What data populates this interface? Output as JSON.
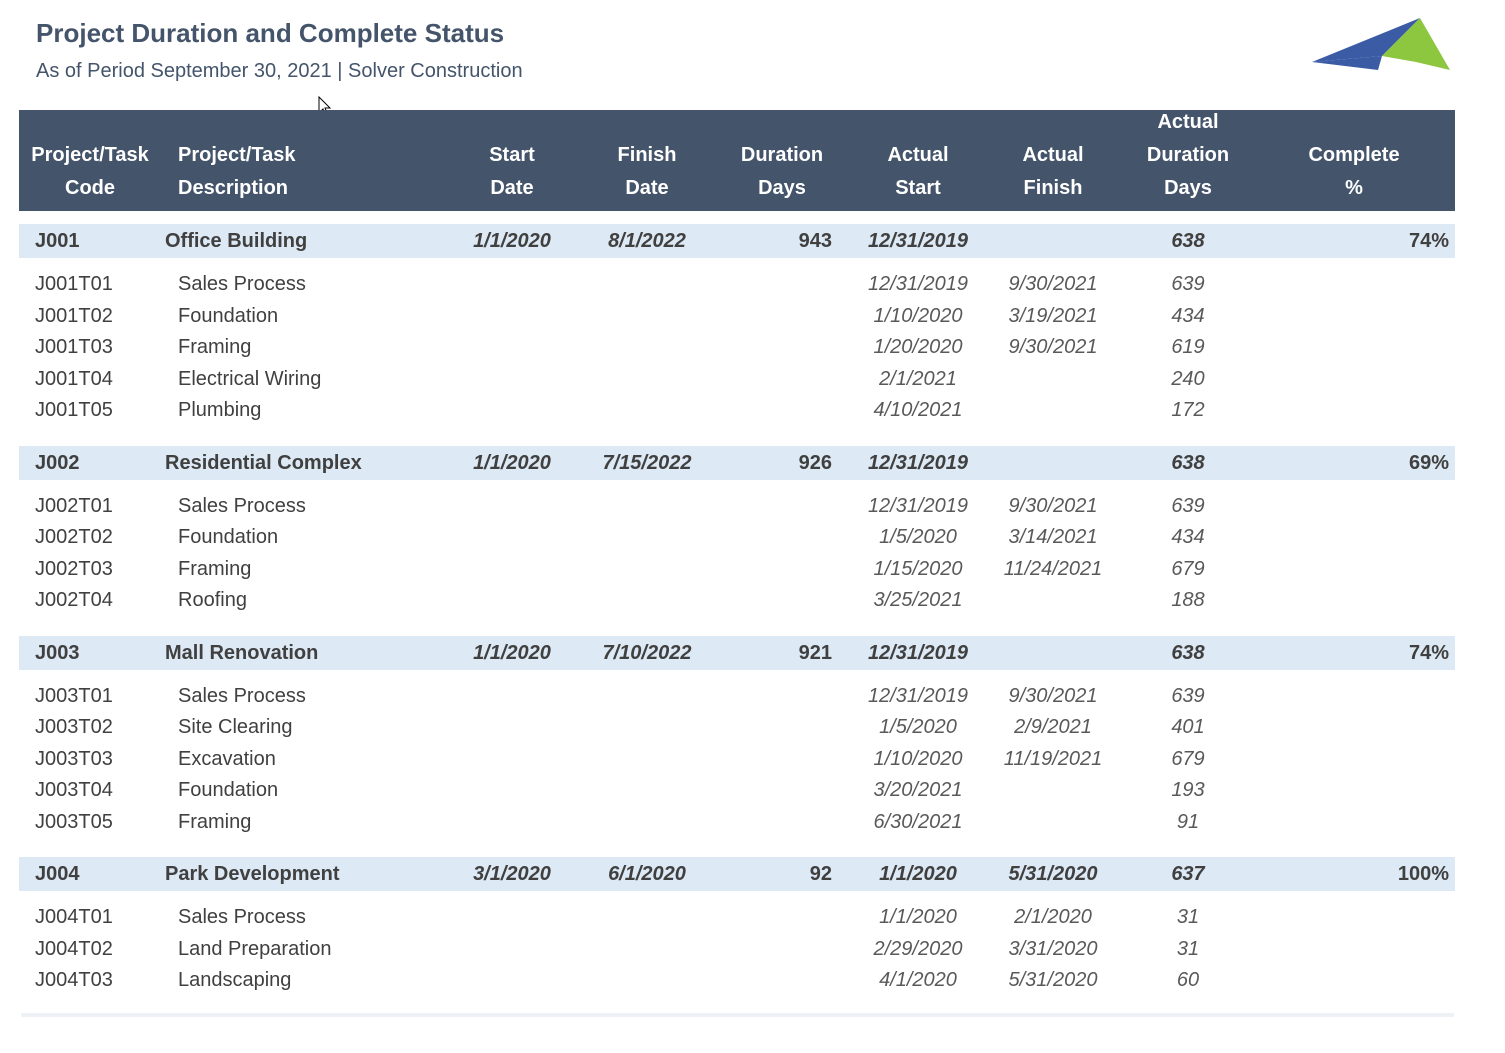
{
  "header": {
    "title": "Project Duration and Complete Status",
    "subtitle": "As of Period September 30, 2021 | Solver Construction"
  },
  "columns": {
    "code": [
      "Project/Task",
      "Code"
    ],
    "desc": [
      "Project/Task",
      "Description"
    ],
    "start": [
      "Start",
      "Date"
    ],
    "finish": [
      "Finish",
      "Date"
    ],
    "duration": [
      "Duration",
      "Days"
    ],
    "actual_start": [
      "Actual",
      "Start"
    ],
    "actual_finish": [
      "Actual",
      "Finish"
    ],
    "actual_duration": [
      "Actual",
      "Duration",
      "Days"
    ],
    "complete": [
      "Complete",
      "%"
    ]
  },
  "projects": [
    {
      "code": "J001",
      "desc": "Office Building",
      "start": "1/1/2020",
      "finish": "8/1/2022",
      "duration": "943",
      "actual_start": "12/31/2019",
      "actual_finish": "",
      "actual_duration": "638",
      "complete": "74%",
      "tasks": [
        {
          "code": "J001T01",
          "desc": "Sales Process",
          "actual_start": "12/31/2019",
          "actual_finish": "9/30/2021",
          "actual_duration": "639"
        },
        {
          "code": "J001T02",
          "desc": "Foundation",
          "actual_start": "1/10/2020",
          "actual_finish": "3/19/2021",
          "actual_duration": "434"
        },
        {
          "code": "J001T03",
          "desc": "Framing",
          "actual_start": "1/20/2020",
          "actual_finish": "9/30/2021",
          "actual_duration": "619"
        },
        {
          "code": "J001T04",
          "desc": "Electrical Wiring",
          "actual_start": "2/1/2021",
          "actual_finish": "",
          "actual_duration": "240"
        },
        {
          "code": "J001T05",
          "desc": "Plumbing",
          "actual_start": "4/10/2021",
          "actual_finish": "",
          "actual_duration": "172"
        }
      ]
    },
    {
      "code": "J002",
      "desc": "Residential Complex",
      "start": "1/1/2020",
      "finish": "7/15/2022",
      "duration": "926",
      "actual_start": "12/31/2019",
      "actual_finish": "",
      "actual_duration": "638",
      "complete": "69%",
      "tasks": [
        {
          "code": "J002T01",
          "desc": "Sales Process",
          "actual_start": "12/31/2019",
          "actual_finish": "9/30/2021",
          "actual_duration": "639"
        },
        {
          "code": "J002T02",
          "desc": "Foundation",
          "actual_start": "1/5/2020",
          "actual_finish": "3/14/2021",
          "actual_duration": "434"
        },
        {
          "code": "J002T03",
          "desc": "Framing",
          "actual_start": "1/15/2020",
          "actual_finish": "11/24/2021",
          "actual_duration": "679"
        },
        {
          "code": "J002T04",
          "desc": "Roofing",
          "actual_start": "3/25/2021",
          "actual_finish": "",
          "actual_duration": "188"
        }
      ]
    },
    {
      "code": "J003",
      "desc": "Mall Renovation",
      "start": "1/1/2020",
      "finish": "7/10/2022",
      "duration": "921",
      "actual_start": "12/31/2019",
      "actual_finish": "",
      "actual_duration": "638",
      "complete": "74%",
      "tasks": [
        {
          "code": "J003T01",
          "desc": "Sales Process",
          "actual_start": "12/31/2019",
          "actual_finish": "9/30/2021",
          "actual_duration": "639"
        },
        {
          "code": "J003T02",
          "desc": "Site Clearing",
          "actual_start": "1/5/2020",
          "actual_finish": "2/9/2021",
          "actual_duration": "401"
        },
        {
          "code": "J003T03",
          "desc": "Excavation",
          "actual_start": "1/10/2020",
          "actual_finish": "11/19/2021",
          "actual_duration": "679"
        },
        {
          "code": "J003T04",
          "desc": "Foundation",
          "actual_start": "3/20/2021",
          "actual_finish": "",
          "actual_duration": "193"
        },
        {
          "code": "J003T05",
          "desc": "Framing",
          "actual_start": "6/30/2021",
          "actual_finish": "",
          "actual_duration": "91"
        }
      ]
    },
    {
      "code": "J004",
      "desc": "Park Development",
      "start": "3/1/2020",
      "finish": "6/1/2020",
      "duration": "92",
      "actual_start": "1/1/2020",
      "actual_finish": "5/31/2020",
      "actual_duration": "637",
      "complete": "100%",
      "tasks": [
        {
          "code": "J004T01",
          "desc": "Sales Process",
          "actual_start": "1/1/2020",
          "actual_finish": "2/1/2020",
          "actual_duration": "31"
        },
        {
          "code": "J004T02",
          "desc": "Land Preparation",
          "actual_start": "2/29/2020",
          "actual_finish": "3/31/2020",
          "actual_duration": "31"
        },
        {
          "code": "J004T03",
          "desc": "Landscaping",
          "actual_start": "4/1/2020",
          "actual_finish": "5/31/2020",
          "actual_duration": "60"
        }
      ]
    }
  ],
  "colors": {
    "header_bg": "#44546a",
    "project_row_bg": "#dde9f4",
    "logo_blue": "#3b5ba5",
    "logo_green": "#8dc63f"
  },
  "icons": {
    "logo": "solver-logo-icon",
    "cursor": "mouse-pointer-icon"
  }
}
